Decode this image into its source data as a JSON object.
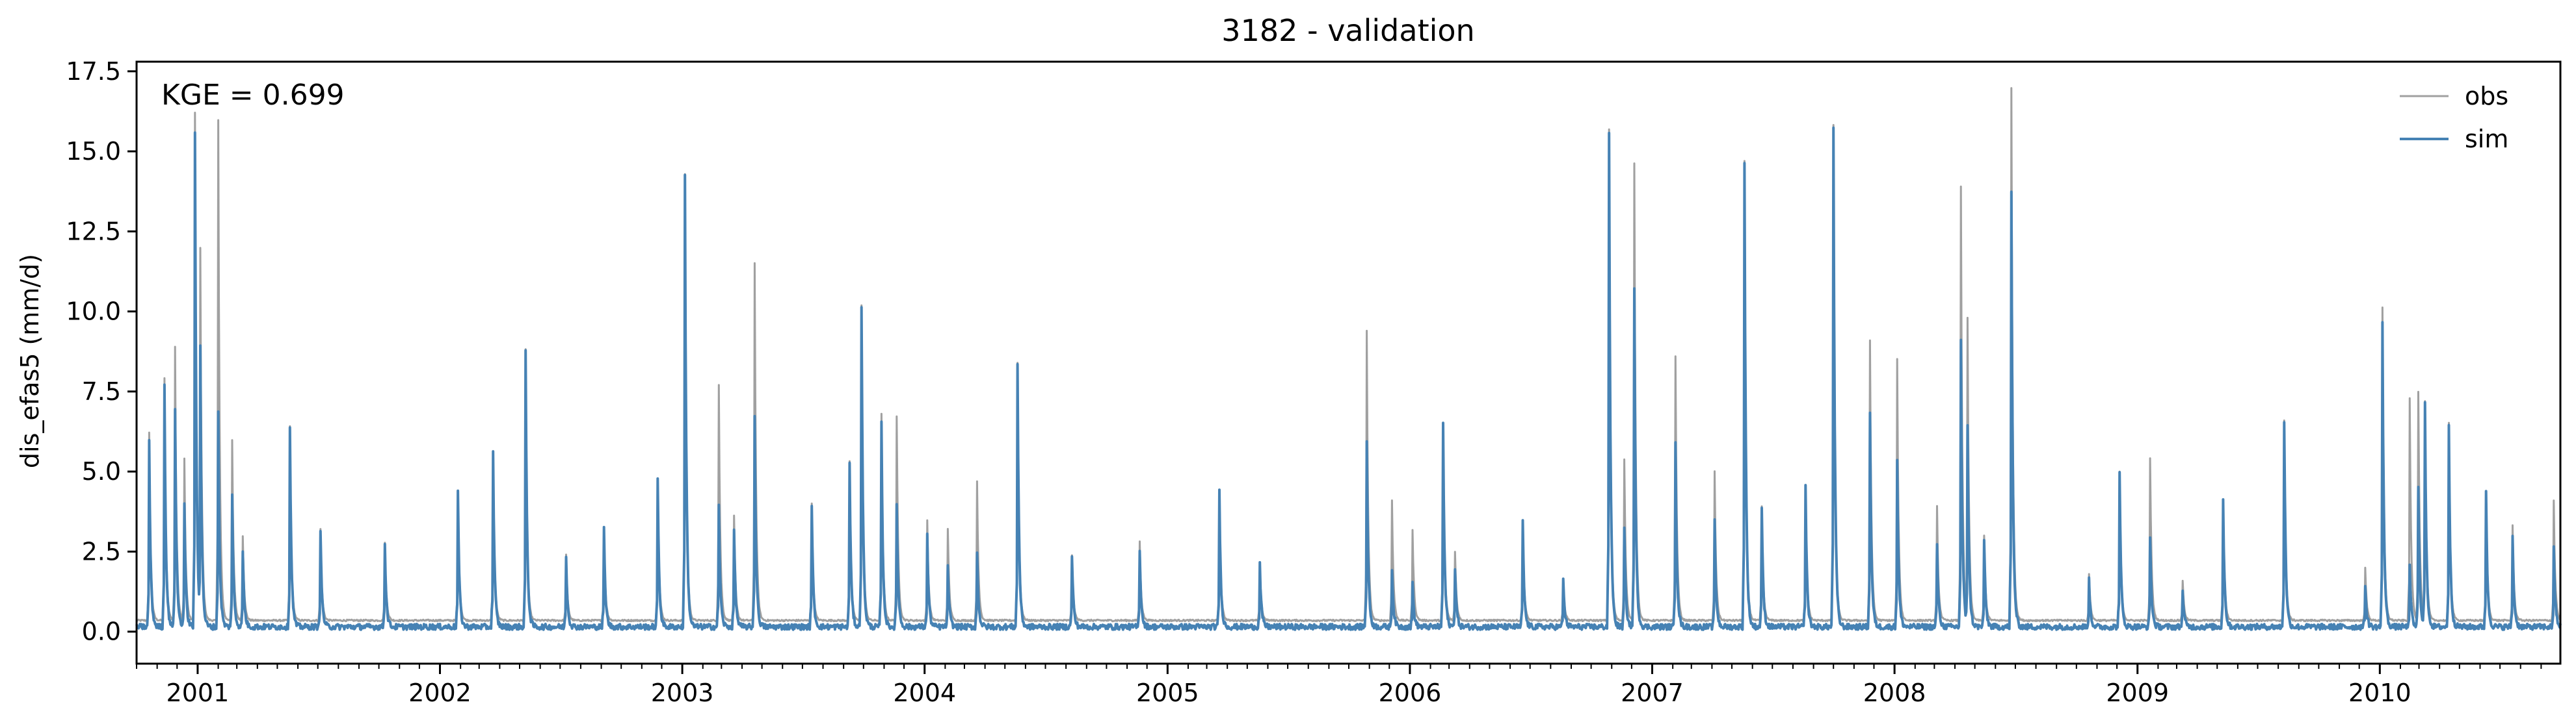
{
  "chart_data": {
    "type": "line",
    "title": "3182 - validation",
    "ylabel": "dis_efas5 (mm/d)",
    "xlabel": "",
    "annotation": "KGE = 0.699",
    "xlim": [
      "2000-10-01",
      "2010-09-30"
    ],
    "ylim": [
      -1.0,
      17.8
    ],
    "yticks": [
      0.0,
      2.5,
      5.0,
      7.5,
      10.0,
      12.5,
      15.0,
      17.5
    ],
    "ytick_labels": [
      "0.0",
      "2.5",
      "5.0",
      "7.5",
      "10.0",
      "12.5",
      "15.0",
      "17.5"
    ],
    "xticks": [
      "2001-01-01",
      "2002-01-01",
      "2003-01-01",
      "2004-01-01",
      "2005-01-01",
      "2006-01-01",
      "2007-01-01",
      "2008-01-01",
      "2009-01-01",
      "2010-01-01"
    ],
    "xtick_labels": [
      "2001",
      "2002",
      "2003",
      "2004",
      "2005",
      "2006",
      "2007",
      "2008",
      "2009",
      "2010"
    ],
    "grid": false,
    "legend": "top-right",
    "series": [
      {
        "name": "obs",
        "color": "#a0a0a0",
        "baseline": 0.35,
        "peaks": [
          [
            "2000-10-20",
            6.2
          ],
          [
            "2000-11-12",
            7.9
          ],
          [
            "2000-11-28",
            8.9
          ],
          [
            "2000-12-12",
            5.4
          ],
          [
            "2000-12-28",
            16.2
          ],
          [
            "2001-01-05",
            12.0
          ],
          [
            "2001-02-01",
            16.0
          ],
          [
            "2001-02-22",
            6.0
          ],
          [
            "2001-03-10",
            3.0
          ],
          [
            "2001-05-20",
            6.4
          ],
          [
            "2001-07-05",
            3.2
          ],
          [
            "2001-10-10",
            2.8
          ],
          [
            "2002-01-28",
            4.4
          ],
          [
            "2002-03-22",
            5.6
          ],
          [
            "2002-05-10",
            8.8
          ],
          [
            "2002-07-10",
            2.4
          ],
          [
            "2002-09-05",
            3.2
          ],
          [
            "2002-11-25",
            4.7
          ],
          [
            "2003-01-05",
            14.3
          ],
          [
            "2003-02-25",
            7.7
          ],
          [
            "2003-03-20",
            3.6
          ],
          [
            "2003-04-20",
            11.5
          ],
          [
            "2003-07-15",
            4.0
          ],
          [
            "2003-09-10",
            5.3
          ],
          [
            "2003-09-28",
            10.2
          ],
          [
            "2003-10-28",
            6.8
          ],
          [
            "2003-11-20",
            6.7
          ],
          [
            "2004-01-05",
            3.5
          ],
          [
            "2004-02-05",
            3.2
          ],
          [
            "2004-03-20",
            4.7
          ],
          [
            "2004-05-20",
            8.4
          ],
          [
            "2004-08-10",
            2.4
          ],
          [
            "2004-11-20",
            2.8
          ],
          [
            "2005-03-20",
            4.4
          ],
          [
            "2005-05-20",
            2.1
          ],
          [
            "2005-10-28",
            9.4
          ],
          [
            "2005-12-05",
            4.1
          ],
          [
            "2006-01-05",
            3.2
          ],
          [
            "2006-02-20",
            6.5
          ],
          [
            "2006-03-10",
            2.5
          ],
          [
            "2006-06-20",
            3.4
          ],
          [
            "2006-08-20",
            1.6
          ],
          [
            "2006-10-28",
            15.7
          ],
          [
            "2006-11-20",
            5.4
          ],
          [
            "2006-12-05",
            14.6
          ],
          [
            "2007-02-05",
            8.6
          ],
          [
            "2007-04-05",
            5.0
          ],
          [
            "2007-05-20",
            14.7
          ],
          [
            "2007-06-15",
            3.9
          ],
          [
            "2007-08-20",
            4.5
          ],
          [
            "2007-10-01",
            15.8
          ],
          [
            "2007-11-25",
            9.1
          ],
          [
            "2008-01-05",
            8.5
          ],
          [
            "2008-03-05",
            3.9
          ],
          [
            "2008-04-10",
            13.9
          ],
          [
            "2008-04-20",
            9.8
          ],
          [
            "2008-05-15",
            3.0
          ],
          [
            "2008-06-25",
            17.0
          ],
          [
            "2008-10-20",
            1.8
          ],
          [
            "2008-12-05",
            5.0
          ],
          [
            "2009-01-20",
            5.4
          ],
          [
            "2009-03-10",
            1.6
          ],
          [
            "2009-05-10",
            4.1
          ],
          [
            "2009-08-10",
            6.6
          ],
          [
            "2009-12-10",
            2.0
          ],
          [
            "2010-01-05",
            10.1
          ],
          [
            "2010-02-15",
            7.3
          ],
          [
            "2010-02-28",
            7.5
          ],
          [
            "2010-03-10",
            7.2
          ],
          [
            "2010-04-15",
            6.5
          ],
          [
            "2010-06-10",
            4.4
          ],
          [
            "2010-07-20",
            3.3
          ],
          [
            "2010-09-20",
            4.1
          ]
        ]
      },
      {
        "name": "sim",
        "color": "#4682b4",
        "baseline": 0.15,
        "peaks": [
          [
            "2000-10-20",
            6.0
          ],
          [
            "2000-11-12",
            7.8
          ],
          [
            "2000-11-28",
            7.0
          ],
          [
            "2000-12-12",
            4.0
          ],
          [
            "2000-12-28",
            15.5
          ],
          [
            "2001-01-05",
            9.0
          ],
          [
            "2001-02-01",
            6.8
          ],
          [
            "2001-02-22",
            4.3
          ],
          [
            "2001-03-10",
            2.5
          ],
          [
            "2001-05-20",
            6.4
          ],
          [
            "2001-07-05",
            3.2
          ],
          [
            "2001-10-10",
            2.8
          ],
          [
            "2002-01-28",
            4.4
          ],
          [
            "2002-03-22",
            5.6
          ],
          [
            "2002-05-10",
            8.8
          ],
          [
            "2002-07-10",
            2.4
          ],
          [
            "2002-09-05",
            3.2
          ],
          [
            "2002-11-25",
            4.7
          ],
          [
            "2003-01-05",
            14.3
          ],
          [
            "2003-02-25",
            4.0
          ],
          [
            "2003-03-20",
            3.2
          ],
          [
            "2003-04-20",
            6.8
          ],
          [
            "2003-07-15",
            4.0
          ],
          [
            "2003-09-10",
            5.3
          ],
          [
            "2003-09-28",
            10.2
          ],
          [
            "2003-10-28",
            6.5
          ],
          [
            "2003-11-20",
            4.0
          ],
          [
            "2004-01-05",
            3.0
          ],
          [
            "2004-02-05",
            2.0
          ],
          [
            "2004-03-20",
            2.5
          ],
          [
            "2004-05-20",
            8.4
          ],
          [
            "2004-08-10",
            2.4
          ],
          [
            "2004-11-20",
            2.6
          ],
          [
            "2005-03-20",
            4.4
          ],
          [
            "2005-05-20",
            2.1
          ],
          [
            "2005-10-28",
            6.0
          ],
          [
            "2005-12-05",
            2.0
          ],
          [
            "2006-01-05",
            1.5
          ],
          [
            "2006-02-20",
            6.5
          ],
          [
            "2006-03-10",
            2.0
          ],
          [
            "2006-06-20",
            3.4
          ],
          [
            "2006-08-20",
            1.6
          ],
          [
            "2006-10-28",
            15.6
          ],
          [
            "2006-11-20",
            3.2
          ],
          [
            "2006-12-05",
            10.8
          ],
          [
            "2007-02-05",
            6.0
          ],
          [
            "2007-04-05",
            3.5
          ],
          [
            "2007-05-20",
            14.7
          ],
          [
            "2007-06-15",
            3.9
          ],
          [
            "2007-08-20",
            4.5
          ],
          [
            "2007-10-01",
            15.8
          ],
          [
            "2007-11-25",
            6.9
          ],
          [
            "2008-01-05",
            5.4
          ],
          [
            "2008-03-05",
            2.7
          ],
          [
            "2008-04-10",
            9.1
          ],
          [
            "2008-04-20",
            6.5
          ],
          [
            "2008-05-15",
            2.8
          ],
          [
            "2008-06-25",
            13.7
          ],
          [
            "2008-10-20",
            1.6
          ],
          [
            "2008-12-05",
            5.0
          ],
          [
            "2009-01-20",
            3.0
          ],
          [
            "2009-03-10",
            1.3
          ],
          [
            "2009-05-10",
            4.1
          ],
          [
            "2009-08-10",
            6.6
          ],
          [
            "2009-12-10",
            1.5
          ],
          [
            "2010-01-05",
            9.6
          ],
          [
            "2010-02-15",
            2.0
          ],
          [
            "2010-02-28",
            4.5
          ],
          [
            "2010-03-10",
            7.1
          ],
          [
            "2010-04-15",
            6.5
          ],
          [
            "2010-06-10",
            4.4
          ],
          [
            "2010-07-20",
            3.0
          ],
          [
            "2010-09-20",
            2.6
          ]
        ]
      }
    ]
  }
}
